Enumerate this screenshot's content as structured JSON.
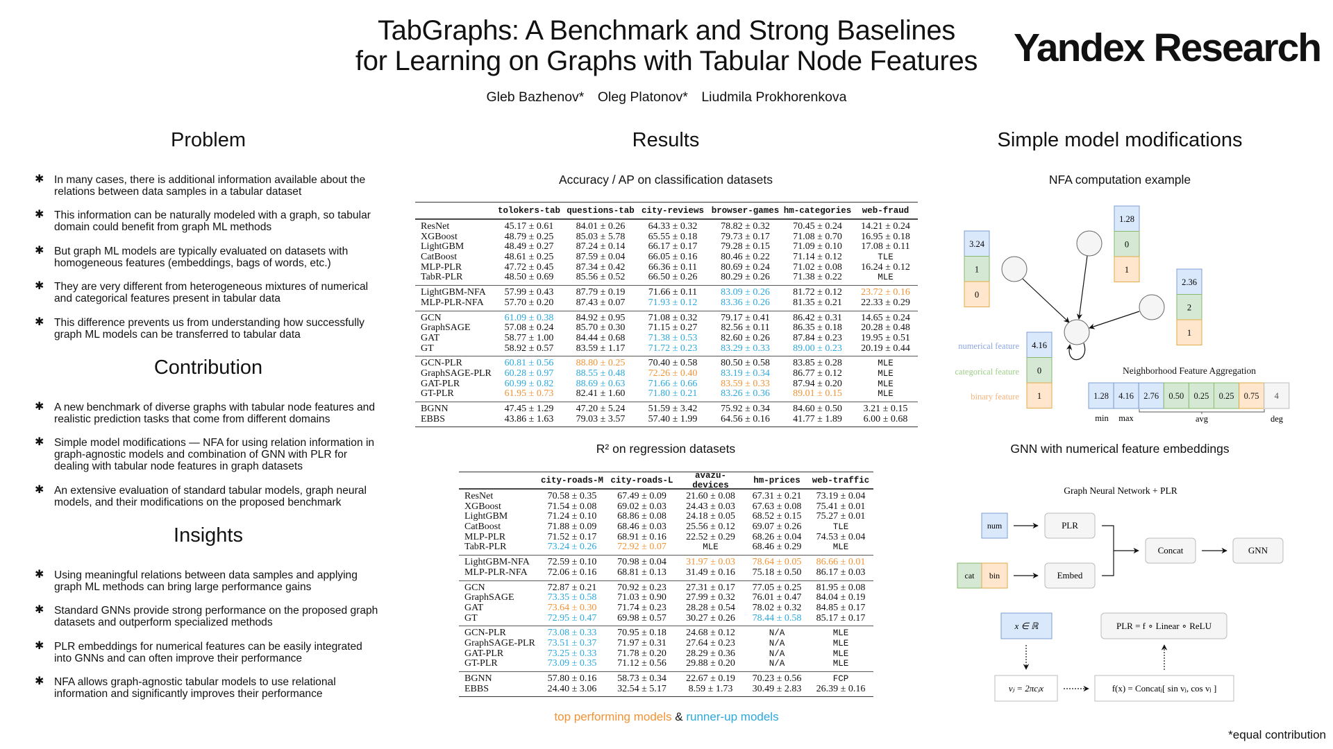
{
  "header": {
    "title_line1": "TabGraphs: A Benchmark and Strong Baselines",
    "title_line2": "for Learning on Graphs with Tabular Node Features",
    "authors": [
      "Gleb Bazhenov*",
      "Oleg Platonov*",
      "Liudmila Prokhorenkova"
    ],
    "logo": "Yandex Research"
  },
  "problem": {
    "heading": "Problem",
    "bullets": [
      "In many cases, there is additional information available about the relations between data samples in a tabular dataset",
      "This information can be naturally modeled with a graph, so tabular domain could benefit from graph ML methods",
      "But graph ML models are typically evaluated on datasets with homogeneous features (embeddings, bags of words, etc.)",
      "They are very different from heterogeneous mixtures of numerical and categorical features present in tabular data",
      "This difference prevents us from understanding how successfully graph ML models can be transferred to tabular data"
    ]
  },
  "contribution": {
    "heading": "Contribution",
    "bullets": [
      "A new benchmark of diverse graphs with tabular node features and realistic prediction tasks that come from different domains",
      "Simple model modifications — NFA for using relation information in graph-agnostic models and combination of GNN with PLR for dealing with tabular node features in graph datasets",
      "An extensive evaluation of standard tabular models, graph neural models, and their modifications on the proposed benchmark"
    ]
  },
  "insights": {
    "heading": "Insights",
    "bullets": [
      "Using meaningful relations between data samples and applying graph ML methods can bring large performance gains",
      "Standard GNNs provide strong performance on the proposed graph datasets and outperform specialized methods",
      "PLR embeddings for numerical features can be easily integrated into GNNs and can often improve their performance",
      "NFA allows graph-agnostic tabular models to use relational information and significantly improves their performance"
    ]
  },
  "results": {
    "heading": "Results",
    "colors": {
      "top": "#f39233",
      "runner_up": "#2aa8de"
    },
    "classification": {
      "subtitle": "Accuracy / AP on classification datasets",
      "columns": [
        "tolokers-tab",
        "questions-tab",
        "city-reviews",
        "browser-games",
        "hm-categories",
        "web-fraud"
      ],
      "groups": [
        [
          {
            "m": "ResNet",
            "c": [
              "45.17 ± 0.61",
              "84.01 ± 0.26",
              "64.33 ± 0.32",
              "78.82 ± 0.32",
              "70.45 ± 0.24",
              "14.21 ± 0.24"
            ]
          },
          {
            "m": "XGBoost",
            "c": [
              "48.79 ± 0.25",
              "85.03 ± 5.78",
              "65.55 ± 0.18",
              "79.73 ± 0.17",
              "71.08 ± 0.70",
              "16.95 ± 0.18"
            ]
          },
          {
            "m": "LightGBM",
            "c": [
              "48.49 ± 0.27",
              "87.24 ± 0.14",
              "66.17 ± 0.17",
              "79.28 ± 0.15",
              "71.09 ± 0.10",
              "17.08 ± 0.11"
            ]
          },
          {
            "m": "CatBoost",
            "c": [
              "48.61 ± 0.25",
              "87.59 ± 0.04",
              "66.05 ± 0.16",
              "80.46 ± 0.22",
              "71.14 ± 0.12",
              "TLE"
            ]
          },
          {
            "m": "MLP-PLR",
            "c": [
              "47.72 ± 0.45",
              "87.34 ± 0.42",
              "66.36 ± 0.11",
              "80.69 ± 0.24",
              "71.02 ± 0.08",
              "16.24 ± 0.12"
            ]
          },
          {
            "m": "TabR-PLR",
            "c": [
              "48.50 ± 0.69",
              "85.56 ± 0.52",
              "66.50 ± 0.26",
              "80.29 ± 0.26",
              "71.38 ± 0.22",
              "MLE"
            ]
          }
        ],
        [
          {
            "m": "LightGBM-NFA",
            "c": [
              "57.99 ± 0.43",
              "87.79 ± 0.19",
              "71.66 ± 0.11",
              "83.09 ± 0.26",
              "81.72 ± 0.12",
              "23.72 ± 0.16"
            ],
            "run": [
              3
            ],
            "top": [
              5
            ]
          },
          {
            "m": "MLP-PLR-NFA",
            "c": [
              "57.70 ± 0.20",
              "87.43 ± 0.07",
              "71.93 ± 0.12",
              "83.36 ± 0.26",
              "81.35 ± 0.21",
              "22.33 ± 0.29"
            ],
            "run": [
              2,
              3
            ]
          }
        ],
        [
          {
            "m": "GCN",
            "c": [
              "61.09 ± 0.38",
              "84.92 ± 0.95",
              "71.08 ± 0.32",
              "79.17 ± 0.41",
              "86.42 ± 0.31",
              "14.65 ± 0.24"
            ],
            "run": [
              0
            ]
          },
          {
            "m": "GraphSAGE",
            "c": [
              "57.08 ± 0.24",
              "85.70 ± 0.30",
              "71.15 ± 0.27",
              "82.56 ± 0.11",
              "86.35 ± 0.18",
              "20.28 ± 0.48"
            ]
          },
          {
            "m": "GAT",
            "c": [
              "58.77 ± 1.00",
              "84.44 ± 0.68",
              "71.38 ± 0.53",
              "82.60 ± 0.26",
              "87.84 ± 0.23",
              "19.95 ± 0.51"
            ],
            "run": [
              2
            ]
          },
          {
            "m": "GT",
            "c": [
              "58.92 ± 0.57",
              "83.59 ± 1.17",
              "71.72 ± 0.23",
              "83.29 ± 0.33",
              "89.00 ± 0.23",
              "20.19 ± 0.44"
            ],
            "run": [
              2,
              3,
              4
            ]
          }
        ],
        [
          {
            "m": "GCN-PLR",
            "c": [
              "60.81 ± 0.56",
              "88.80 ± 0.25",
              "70.40 ± 0.58",
              "80.50 ± 0.58",
              "83.85 ± 0.28",
              "MLE"
            ],
            "run": [
              0
            ],
            "top": [
              1
            ]
          },
          {
            "m": "GraphSAGE-PLR",
            "c": [
              "60.28 ± 0.97",
              "88.55 ± 0.48",
              "72.26 ± 0.40",
              "83.19 ± 0.34",
              "86.77 ± 0.12",
              "MLE"
            ],
            "run": [
              0,
              1,
              3
            ],
            "top": [
              2
            ]
          },
          {
            "m": "GAT-PLR",
            "c": [
              "60.99 ± 0.82",
              "88.69 ± 0.63",
              "71.66 ± 0.66",
              "83.59 ± 0.33",
              "87.94 ± 0.20",
              "MLE"
            ],
            "run": [
              0,
              1,
              2
            ],
            "top": [
              3
            ]
          },
          {
            "m": "GT-PLR",
            "c": [
              "61.95 ± 0.73",
              "82.41 ± 1.60",
              "71.80 ± 0.21",
              "83.26 ± 0.36",
              "89.01 ± 0.15",
              "MLE"
            ],
            "run": [
              2,
              3
            ],
            "top": [
              0,
              4
            ]
          }
        ],
        [
          {
            "m": "BGNN",
            "c": [
              "47.45 ± 1.29",
              "47.20 ± 5.24",
              "51.59 ± 3.42",
              "75.92 ± 0.34",
              "84.60 ± 0.50",
              "3.21 ± 0.15"
            ]
          },
          {
            "m": "EBBS",
            "c": [
              "43.86 ± 1.63",
              "79.03 ± 3.57",
              "57.40 ± 1.99",
              "64.56 ± 0.16",
              "41.77 ± 1.89",
              "6.00 ± 0.68"
            ]
          }
        ]
      ]
    },
    "regression": {
      "subtitle": "R² on regression datasets",
      "columns": [
        "city-roads-M",
        "city-roads-L",
        "avazu-devices",
        "hm-prices",
        "web-traffic"
      ],
      "groups": [
        [
          {
            "m": "ResNet",
            "c": [
              "70.58 ± 0.35",
              "67.49 ± 0.09",
              "21.60 ± 0.08",
              "67.31 ± 0.21",
              "73.19 ± 0.04"
            ]
          },
          {
            "m": "XGBoost",
            "c": [
              "71.54 ± 0.08",
              "69.02 ± 0.03",
              "24.43 ± 0.03",
              "67.63 ± 0.08",
              "75.41 ± 0.01"
            ]
          },
          {
            "m": "LightGBM",
            "c": [
              "71.24 ± 0.10",
              "68.86 ± 0.08",
              "24.18 ± 0.05",
              "68.52 ± 0.15",
              "75.27 ± 0.01"
            ]
          },
          {
            "m": "CatBoost",
            "c": [
              "71.88 ± 0.09",
              "68.46 ± 0.03",
              "25.56 ± 0.12",
              "69.07 ± 0.26",
              "TLE"
            ]
          },
          {
            "m": "MLP-PLR",
            "c": [
              "71.52 ± 0.17",
              "68.91 ± 0.16",
              "22.52 ± 0.29",
              "68.26 ± 0.04",
              "74.53 ± 0.04"
            ]
          },
          {
            "m": "TabR-PLR",
            "c": [
              "73.24 ± 0.26",
              "72.92 ± 0.07",
              "MLE",
              "68.46 ± 0.29",
              "MLE"
            ],
            "run": [
              0
            ],
            "top": [
              1
            ]
          }
        ],
        [
          {
            "m": "LightGBM-NFA",
            "c": [
              "72.59 ± 0.10",
              "70.98 ± 0.04",
              "31.97 ± 0.03",
              "78.64 ± 0.05",
              "86.66 ± 0.01"
            ],
            "top": [
              2,
              3,
              4
            ]
          },
          {
            "m": "MLP-PLR-NFA",
            "c": [
              "72.06 ± 0.16",
              "68.81 ± 0.13",
              "31.49 ± 0.16",
              "75.18 ± 0.50",
              "86.17 ± 0.03"
            ]
          }
        ],
        [
          {
            "m": "GCN",
            "c": [
              "72.87 ± 0.21",
              "70.92 ± 0.23",
              "27.31 ± 0.17",
              "77.05 ± 0.25",
              "81.95 ± 0.08"
            ]
          },
          {
            "m": "GraphSAGE",
            "c": [
              "73.35 ± 0.58",
              "71.03 ± 0.90",
              "27.99 ± 0.32",
              "76.01 ± 0.47",
              "84.04 ± 0.19"
            ],
            "run": [
              0
            ]
          },
          {
            "m": "GAT",
            "c": [
              "73.64 ± 0.30",
              "71.74 ± 0.23",
              "28.28 ± 0.54",
              "78.02 ± 0.32",
              "84.85 ± 0.17"
            ],
            "top": [
              0
            ]
          },
          {
            "m": "GT",
            "c": [
              "72.95 ± 0.47",
              "69.98 ± 0.57",
              "30.27 ± 0.26",
              "78.44 ± 0.58",
              "85.17 ± 0.17"
            ],
            "run": [
              0,
              3
            ]
          }
        ],
        [
          {
            "m": "GCN-PLR",
            "c": [
              "73.08 ± 0.33",
              "70.95 ± 0.18",
              "24.68 ± 0.12",
              "N/A",
              "MLE"
            ],
            "run": [
              0
            ]
          },
          {
            "m": "GraphSAGE-PLR",
            "c": [
              "73.51 ± 0.37",
              "71.97 ± 0.31",
              "27.64 ± 0.23",
              "N/A",
              "MLE"
            ],
            "run": [
              0
            ]
          },
          {
            "m": "GAT-PLR",
            "c": [
              "73.25 ± 0.33",
              "71.78 ± 0.20",
              "28.29 ± 0.36",
              "N/A",
              "MLE"
            ],
            "run": [
              0
            ]
          },
          {
            "m": "GT-PLR",
            "c": [
              "73.09 ± 0.35",
              "71.12 ± 0.56",
              "29.88 ± 0.20",
              "N/A",
              "MLE"
            ],
            "run": [
              0
            ]
          }
        ],
        [
          {
            "m": "BGNN",
            "c": [
              "57.80 ± 0.16",
              "58.73 ± 0.34",
              "22.67 ± 0.19",
              "70.23 ± 0.56",
              "FCP"
            ]
          },
          {
            "m": "EBBS",
            "c": [
              "24.40 ± 3.06",
              "32.54 ± 5.17",
              "8.59 ± 1.73",
              "30.49 ± 2.83",
              "26.39 ± 0.16"
            ]
          }
        ]
      ]
    },
    "legend": {
      "top": "top performing models",
      "amp": "&",
      "runner_up": "runner-up models"
    }
  },
  "modifications": {
    "heading": "Simple model modifications",
    "nfa": {
      "subtitle": "NFA computation example",
      "neighbor_features": [
        [
          "3.24",
          "1",
          "0"
        ],
        [
          "1.28",
          "0",
          "1"
        ],
        [
          "2.36",
          "2",
          "1"
        ]
      ],
      "target_features": [
        "4.16",
        "0",
        "1"
      ],
      "feature_labels": [
        "numerical feature",
        "categorical feature",
        "binary feature"
      ],
      "colors": {
        "numerical": "#dae8fc",
        "categorical": "#d5e8d4",
        "binary": "#ffe6cc"
      },
      "aggregation_title": "Neighborhood Feature Aggregation",
      "aggregation_values": [
        "1.28",
        "4.16",
        "2.76",
        "0.50",
        "0.25",
        "0.25",
        "0.75",
        "4"
      ],
      "aggregation_labels": {
        "min": "min",
        "max": "max",
        "avg": "avg",
        "deg": "deg"
      }
    },
    "gnn": {
      "subtitle": "GNN with numerical feature embeddings",
      "diagram_title": "Graph Neural Network + PLR",
      "num": "num",
      "cat": "cat",
      "bin": "bin",
      "plr": "PLR",
      "embed": "Embed",
      "concat": "Concat",
      "gnn": "GNN",
      "x_in_r": "x ∈ ℝ",
      "plr_def": "PLR = f ∘ Linear ∘ ReLU",
      "vj_def": "vⱼ = 2πcⱼx",
      "f_def": "f(x) = Concatⱼ[ sin vⱼ, cos vⱼ ]"
    }
  },
  "footnote": "*equal contribution"
}
